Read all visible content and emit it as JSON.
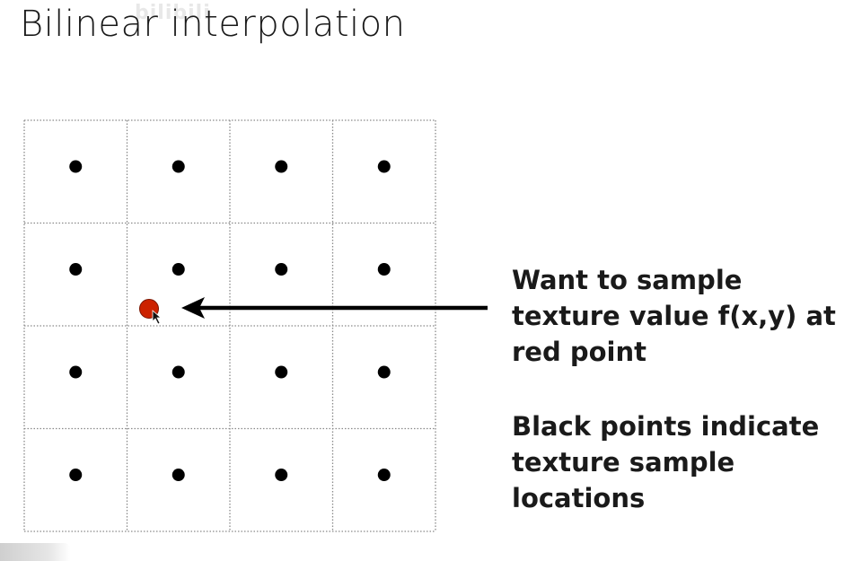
{
  "slide": {
    "title": "Bilinear interpolation",
    "watermark": "bilibili"
  },
  "diagram": {
    "grid": {
      "rows": 4,
      "cols": 4
    },
    "texel_points": {
      "count": 16,
      "color": "#000000",
      "description_id": "black-points"
    },
    "sample_point": {
      "color": "#cc2200",
      "grid_col": 1.0,
      "grid_row": 1.85
    },
    "arrow": {
      "color": "#000000",
      "direction": "left"
    }
  },
  "captions": [
    {
      "lines": [
        "Want to sample",
        "texture value f(x,y) at",
        "red point"
      ]
    },
    {
      "lines": [
        "Black points indicate",
        "texture sample",
        "locations"
      ]
    }
  ],
  "colors": {
    "background": "#ffffff",
    "grid_line": "#8a8a8a",
    "text": "#1a1a1a",
    "red_point": "#cc2200"
  }
}
